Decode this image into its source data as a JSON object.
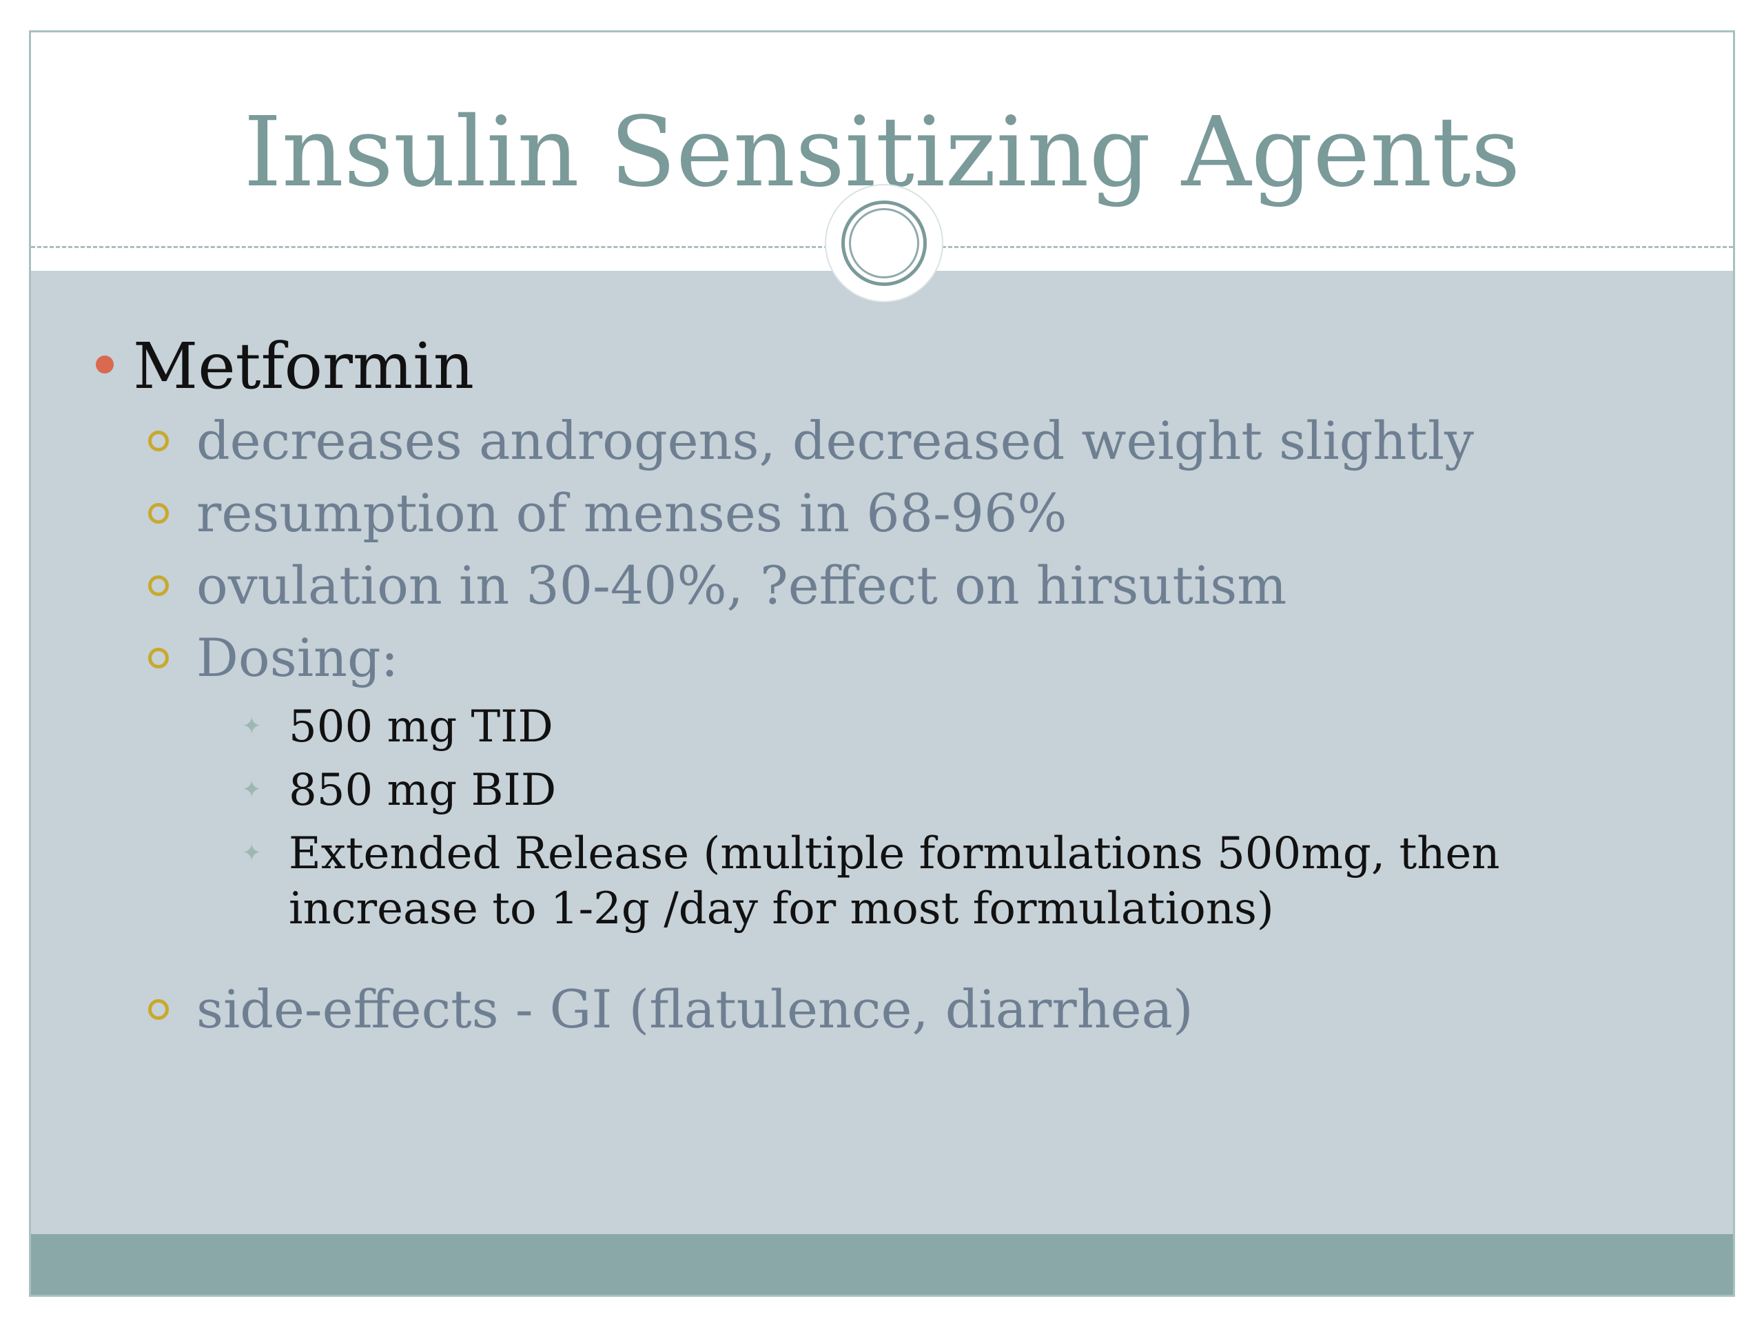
{
  "slide": {
    "title": "Insulin Sensitizing Agents",
    "colors": {
      "title": "#7b9a9a",
      "background": "#c6d1d8",
      "footer": "#8ba8a9",
      "level1_bullet": "#d9694f",
      "level2_bullet": "#c8a92c",
      "level2_text": "#6f7f92"
    },
    "bullets": {
      "level1": {
        "text": "Metformin",
        "icon": "filled-dot-bullet"
      },
      "level2": [
        "decreases androgens, decreased weight slightly",
        "resumption of menses in 68-96%",
        "ovulation in 30-40%, ?effect on hirsutism",
        "Dosing:",
        "side-effects - GI (flatulence, diarrhea)"
      ],
      "level3": [
        "500 mg TID",
        "850 mg BID",
        "Extended Release (multiple formulations 500mg, then increase to 1-2g /day for most formulations)"
      ],
      "level3_icon": "star-bullet"
    }
  }
}
